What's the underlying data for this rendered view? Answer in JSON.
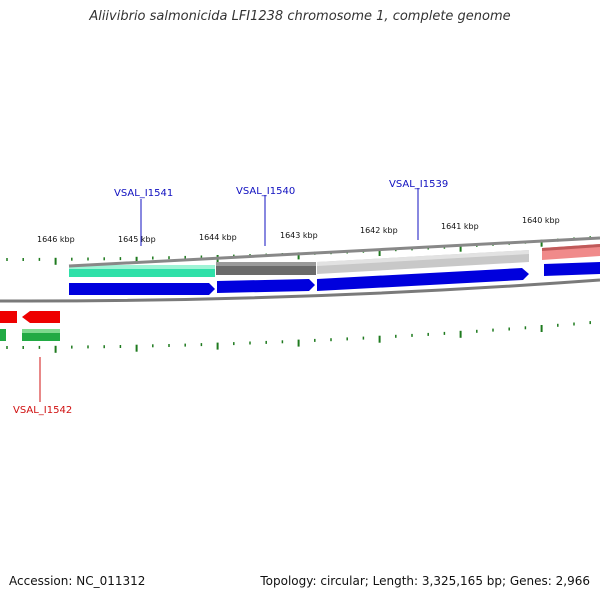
{
  "title": "Aliivibrio salmonicida LFI1238 chromosome 1, complete genome",
  "footer": {
    "accession": "Accession: NC_011312",
    "stats": "Topology: circular; Length: 3,325,165 bp; Genes: 2,966"
  },
  "colors": {
    "tick": "#1e7a1e",
    "backbone": "#888888",
    "forward_gene": "#0000dd",
    "reverse_gene": "#ee0000",
    "forward_label": "#1010c0",
    "reverse_label": "#d01010"
  },
  "kbp_labels": [
    "1646 kbp",
    "1645 kbp",
    "1644 kbp",
    "1643 kbp",
    "1642 kbp",
    "1641 kbp",
    "1640 kbp"
  ],
  "gene_labels": [
    {
      "text": "VSAL_I1541",
      "strand": "forward"
    },
    {
      "text": "VSAL_I1540",
      "strand": "forward"
    },
    {
      "text": "VSAL_I1539",
      "strand": "forward"
    },
    {
      "text": "VSAL_I1542",
      "strand": "reverse"
    }
  ]
}
